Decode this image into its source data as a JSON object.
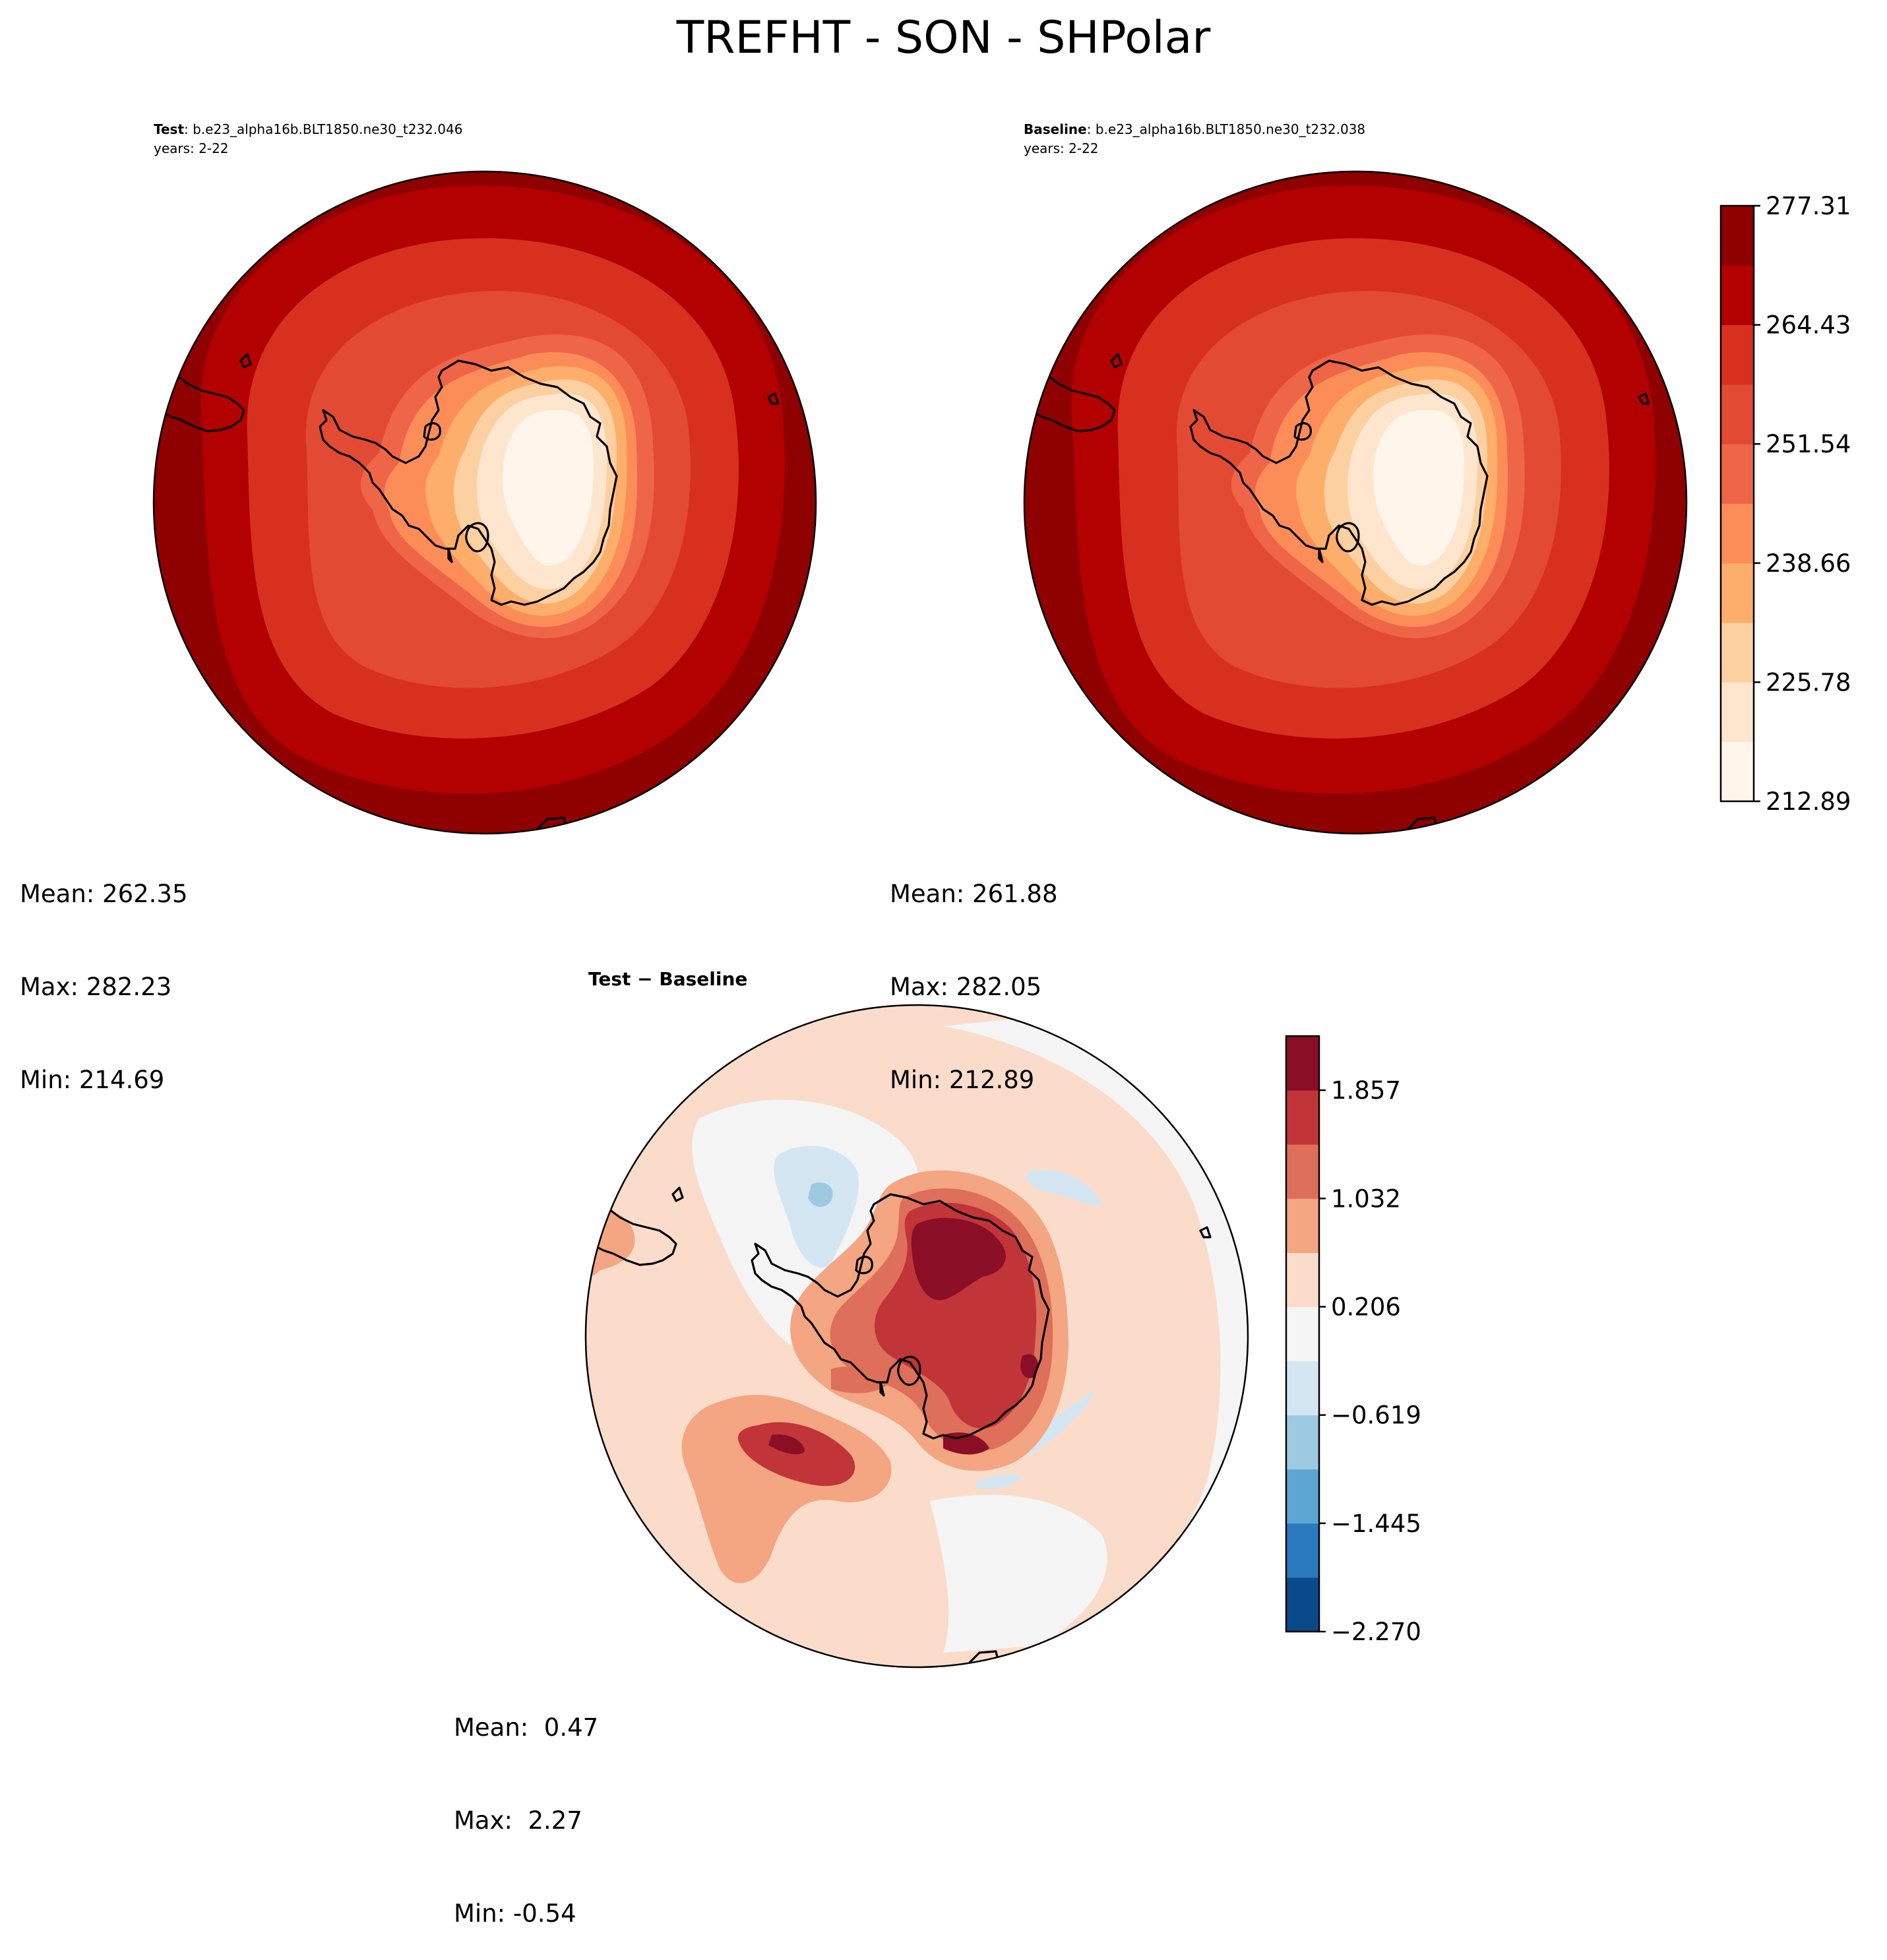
{
  "figure": {
    "title": "TREFHT - SON - SHPolar"
  },
  "panels": {
    "test": {
      "label_bold": "Test",
      "case": ": b.e23_alpha16b.BLT1850.ne30_t232.046",
      "years": "years: 2-22",
      "stats": {
        "mean": "Mean: 262.35",
        "max": "Max: 282.23",
        "min": "Min: 214.69"
      }
    },
    "baseline": {
      "label_bold": "Baseline",
      "case": ": b.e23_alpha16b.BLT1850.ne30_t232.038",
      "years": "years: 2-22",
      "stats": {
        "mean": "Mean: 261.88",
        "max": "Max: 282.05",
        "min": "Min: 212.89"
      }
    },
    "difference": {
      "title": "Test − Baseline",
      "stats": {
        "mean": "Mean:  0.47",
        "max": "Max:  2.27",
        "min": "Min: -0.54"
      }
    }
  },
  "colorbars": {
    "temperature": {
      "tick_labels": [
        "212.89",
        "225.78",
        "238.66",
        "251.54",
        "264.43",
        "277.31"
      ],
      "colors": [
        "#fff5eb",
        "#fee6ce",
        "#fdd0a2",
        "#fdae6b",
        "#fc8d59",
        "#ef6548",
        "#e34a33",
        "#d7301f",
        "#b30000",
        "#8f0000"
      ]
    },
    "difference": {
      "tick_labels": [
        "−2.270",
        "−1.445",
        "−0.619",
        "0.206",
        "1.032",
        "1.857"
      ],
      "colors": [
        "#0b4a8a",
        "#2a78bd",
        "#5da6d3",
        "#9ecae1",
        "#d4e6f2",
        "#f5f5f5",
        "#fbdccb",
        "#f4a582",
        "#de6f5b",
        "#c13438",
        "#8a0e26"
      ]
    }
  }
}
